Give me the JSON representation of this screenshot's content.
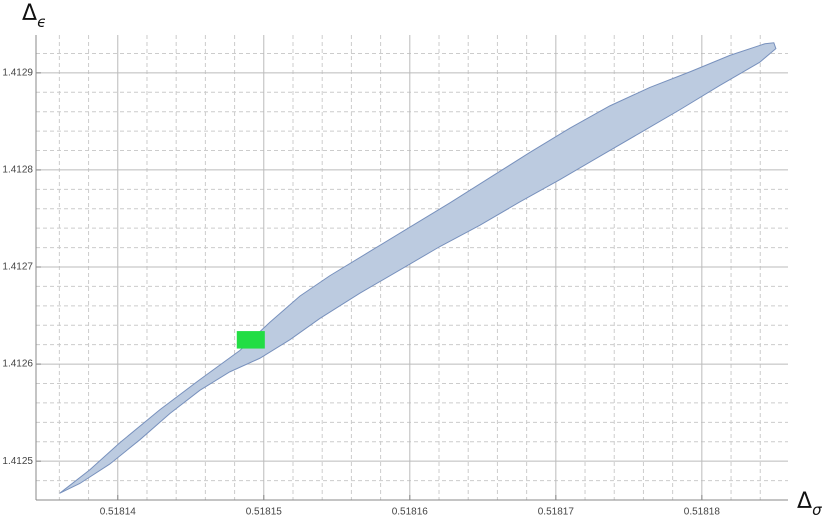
{
  "chart_data": {
    "type": "region",
    "x_label": {
      "symbol": "Δ",
      "subscript": "σ"
    },
    "y_label": {
      "symbol": "Δ",
      "subscript": "ϵ"
    },
    "xlim": [
      0.5181344,
      0.5181859
    ],
    "ylim": [
      1.41246,
      1.412939
    ],
    "xticks": [
      0.51814,
      0.51815,
      0.51816,
      0.51817,
      0.51818
    ],
    "yticks": [
      1.4125,
      1.4126,
      1.4127,
      1.4128,
      1.4129
    ],
    "xminor": [
      0.518136,
      0.518138,
      0.518142,
      0.518144,
      0.518146,
      0.518148,
      0.518152,
      0.518154,
      0.518156,
      0.518158,
      0.518162,
      0.518164,
      0.518166,
      0.518168,
      0.518172,
      0.518174,
      0.518176,
      0.518178,
      0.518182,
      0.518184
    ],
    "yminor": [
      1.41248,
      1.41252,
      1.41254,
      1.41256,
      1.41258,
      1.41262,
      1.41264,
      1.41266,
      1.41268,
      1.41272,
      1.41274,
      1.41276,
      1.41278,
      1.41282,
      1.41284,
      1.41286,
      1.41288,
      1.41292
    ],
    "grid": true,
    "region": {
      "color": "#bccbe0",
      "edge_color": "#7891bd",
      "x": [
        0.51813603,
        0.51813808,
        0.51814014,
        0.51814288,
        0.51814562,
        0.51814836,
        0.51815041,
        0.51815247,
        0.51815452,
        0.51815726,
        0.51816,
        0.51816274,
        0.51816548,
        0.51816822,
        0.51817096,
        0.5181737,
        0.51817644,
        0.51817918,
        0.51818192,
        0.51818432,
        0.51818493,
        0.51818507,
        0.51818397,
        0.51818123,
        0.51817849,
        0.51817575,
        0.51817301,
        0.51817027,
        0.51816753,
        0.51816479,
        0.51816205,
        0.51815932,
        0.51815658,
        0.51815384,
        0.51815178,
        0.51814973,
        0.51814767,
        0.51814562,
        0.51814356,
        0.51814151,
        0.51813945,
        0.5181374
      ],
      "y": [
        1.412467,
        1.412491,
        1.412519,
        1.412553,
        1.412584,
        1.412614,
        1.412643,
        1.41267,
        1.412691,
        1.412716,
        1.412741,
        1.412766,
        1.412792,
        1.412818,
        1.412843,
        1.412866,
        1.412885,
        1.412901,
        1.412918,
        1.41293,
        1.412931,
        1.412925,
        1.412911,
        1.412887,
        1.412862,
        1.412838,
        1.412814,
        1.41279,
        1.412767,
        1.412743,
        1.412721,
        1.412697,
        1.412673,
        1.412647,
        1.412625,
        1.412606,
        1.412592,
        1.412573,
        1.412549,
        1.412522,
        1.412497,
        1.412477
      ]
    },
    "highlight": {
      "color": "#22dd44",
      "xlim": [
        0.51814815,
        0.51815007
      ],
      "ylim": [
        1.412616,
        1.412634
      ]
    }
  }
}
